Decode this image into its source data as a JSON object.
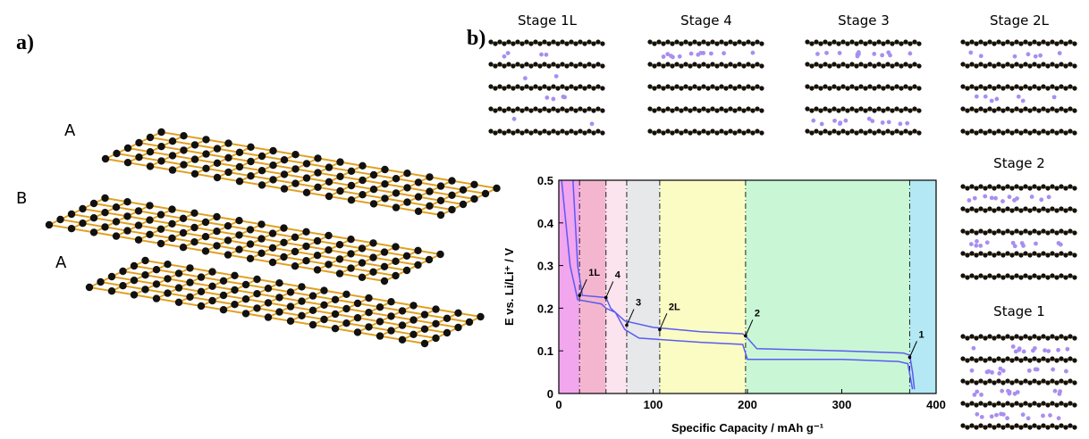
{
  "panel_a": {
    "label": "a)",
    "layers": [
      "A",
      "B",
      "A"
    ]
  },
  "panel_b": {
    "label": "b)",
    "stages": [
      "Stage 1L",
      "Stage 4",
      "Stage 3",
      "Stage 2L",
      "Stage 2",
      "Stage 1"
    ]
  },
  "chart_data": {
    "type": "line",
    "xlabel": "Specific Capacity / mAh g⁻¹",
    "ylabel": "E vs. Li/Li⁺ / V",
    "xlim": [
      0,
      400
    ],
    "xticks": [
      0,
      100,
      200,
      300,
      400
    ],
    "ylim": [
      0,
      0.5
    ],
    "yticks": [
      0.0,
      0.1,
      0.2,
      0.3,
      0.4,
      0.5
    ],
    "regions": [
      {
        "start": 0,
        "end": 22,
        "color": "#f2a6ee"
      },
      {
        "start": 22,
        "end": 50,
        "color": "#f4b6cf"
      },
      {
        "start": 50,
        "end": 72,
        "color": "#fbe4ee"
      },
      {
        "start": 72,
        "end": 107,
        "color": "#e6e8ea"
      },
      {
        "start": 107,
        "end": 198,
        "color": "#fafcc4"
      },
      {
        "start": 198,
        "end": 372,
        "color": "#c9f7d6"
      },
      {
        "start": 372,
        "end": 400,
        "color": "#b3e8f4"
      }
    ],
    "series": [
      {
        "color": "#5b5bf0",
        "x": [
          15,
          20,
          25,
          50,
          55,
          70,
          100,
          150,
          195,
          200,
          210,
          300,
          365,
          372,
          375,
          377
        ],
        "values": [
          0.5,
          0.3,
          0.23,
          0.225,
          0.2,
          0.17,
          0.155,
          0.145,
          0.14,
          0.13,
          0.105,
          0.1,
          0.095,
          0.09,
          0.05,
          0.01
        ]
      },
      {
        "color": "#5b5bf0",
        "x": [
          3,
          12,
          20,
          45,
          50,
          60,
          70,
          85,
          150,
          195,
          200,
          300,
          360,
          370,
          375
        ],
        "values": [
          0.5,
          0.3,
          0.22,
          0.21,
          0.2,
          0.19,
          0.15,
          0.13,
          0.12,
          0.115,
          0.08,
          0.08,
          0.075,
          0.07,
          0.01
        ]
      }
    ],
    "annotations": [
      {
        "text": "1L",
        "x": 22,
        "y": 0.23
      },
      {
        "text": "4",
        "x": 50,
        "y": 0.225
      },
      {
        "text": "3",
        "x": 72,
        "y": 0.16
      },
      {
        "text": "2L",
        "x": 107,
        "y": 0.15
      },
      {
        "text": "2",
        "x": 198,
        "y": 0.135
      },
      {
        "text": "1",
        "x": 372,
        "y": 0.085
      }
    ]
  }
}
